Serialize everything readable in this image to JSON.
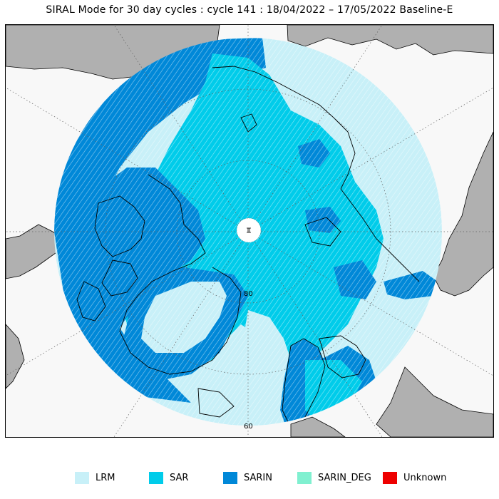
{
  "title": "SIRAL Mode for 30 day cycles : cycle 141 : 18/04/2022 – 17/05/2022 Baseline-E",
  "map": {
    "latitude_labels": [
      "80",
      "60"
    ],
    "colors": {
      "land": "#b0b0b0",
      "ocean": "#f8f8f8",
      "coastline": "#000000",
      "LRM": "#c8f0f8",
      "SAR": "#00ccea",
      "SARIN": "#0088d8",
      "SARIN_DEG": "#80f0d0",
      "Unknown": "#ee0000"
    }
  },
  "legend": [
    {
      "label": "LRM",
      "color": "#c8f0f8"
    },
    {
      "label": "SAR",
      "color": "#00ccea"
    },
    {
      "label": "SARIN",
      "color": "#0088d8"
    },
    {
      "label": "SARIN_DEG",
      "color": "#80f0d0"
    },
    {
      "label": "Unknown",
      "color": "#ee0000"
    }
  ]
}
